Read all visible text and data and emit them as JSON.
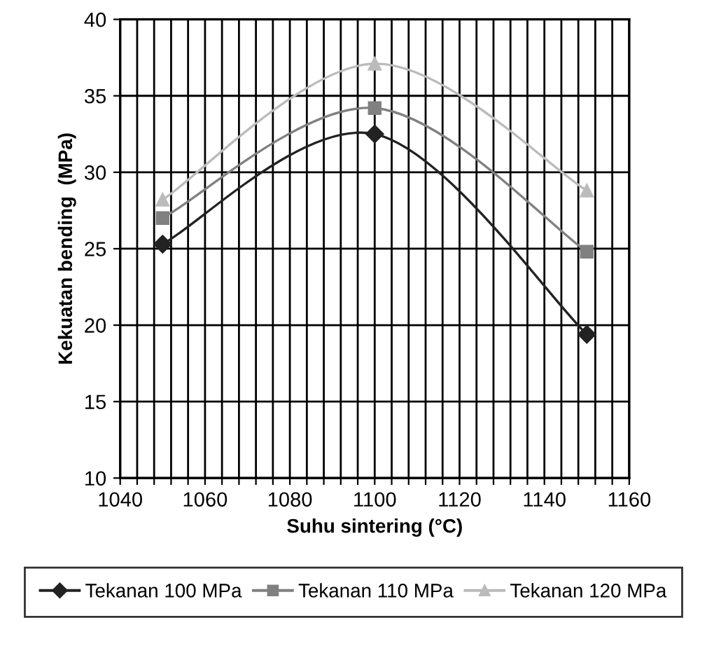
{
  "chart_data": {
    "type": "line",
    "xlabel": "Suhu sintering (°C)",
    "ylabel": "Kekuatan bending  (MPa)",
    "x": [
      1050,
      1100,
      1150
    ],
    "series": [
      {
        "name": "Tekanan 100 MPa",
        "color": "#222222",
        "marker": "diamond",
        "values": [
          25.3,
          32.5,
          19.4
        ]
      },
      {
        "name": "Tekanan 110 MPa",
        "color": "#808080",
        "marker": "square",
        "values": [
          27,
          34.2,
          24.8
        ]
      },
      {
        "name": "Tekanan 120 MPa",
        "color": "#bbbbbb",
        "marker": "triangle",
        "values": [
          28.2,
          37.1,
          28.8
        ]
      }
    ],
    "xlim": [
      1040,
      1160
    ],
    "xticks": [
      1040,
      {
        "value": 1044,
        "label": null
      },
      {
        "value": 1048,
        "label": null
      },
      {
        "value": 1052,
        "label": null
      },
      {
        "value": 1056,
        "label": null
      },
      1060,
      {
        "value": 1064,
        "label": null
      },
      {
        "value": 1068,
        "label": null
      },
      {
        "value": 1072,
        "label": null
      },
      {
        "value": 1076,
        "label": null
      },
      1080,
      {
        "value": 1084,
        "label": null
      },
      {
        "value": 1088,
        "label": null
      },
      {
        "value": 1092,
        "label": null
      },
      {
        "value": 1096,
        "label": null
      },
      1100,
      {
        "value": 1104,
        "label": null
      },
      {
        "value": 1108,
        "label": null
      },
      {
        "value": 1112,
        "label": null
      },
      {
        "value": 1116,
        "label": null
      },
      1120,
      {
        "value": 1124,
        "label": null
      },
      {
        "value": 1128,
        "label": null
      },
      {
        "value": 1132,
        "label": null
      },
      {
        "value": 1136,
        "label": null
      },
      1140,
      {
        "value": 1144,
        "label": null
      },
      {
        "value": 1148,
        "label": null
      },
      {
        "value": 1152,
        "label": null
      },
      {
        "value": 1156,
        "label": null
      },
      1160
    ],
    "ylim": [
      10,
      40
    ],
    "yticks": [
      10,
      15,
      20,
      25,
      30,
      35,
      40
    ],
    "grid": true,
    "legend": "bottom",
    "line_style": "solid"
  }
}
